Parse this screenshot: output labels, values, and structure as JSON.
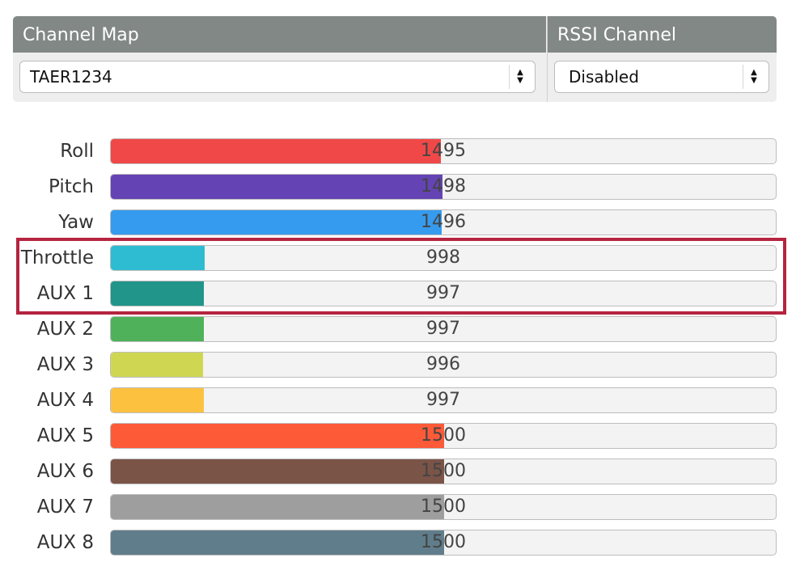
{
  "channel_map": {
    "header": "Channel Map",
    "selected": "TAER1234"
  },
  "rssi_channel": {
    "header": "RSSI Channel",
    "selected": "Disabled"
  },
  "channels": [
    {
      "label": "Roll",
      "value": "1495",
      "level": 0.495,
      "color": "#f04848"
    },
    {
      "label": "Pitch",
      "value": "1498",
      "level": 0.498,
      "color": "#6443b4"
    },
    {
      "label": "Yaw",
      "value": "1496",
      "level": 0.496,
      "color": "#359bee"
    },
    {
      "label": "Throttle",
      "value": "998",
      "level": 0.141,
      "color": "#2ebcd2"
    },
    {
      "label": "AUX 1",
      "value": "997",
      "level": 0.14,
      "color": "#21958a"
    },
    {
      "label": "AUX 2",
      "value": "997",
      "level": 0.14,
      "color": "#4fb15a"
    },
    {
      "label": "AUX 3",
      "value": "996",
      "level": 0.138,
      "color": "#cfd752"
    },
    {
      "label": "AUX 4",
      "value": "997",
      "level": 0.14,
      "color": "#fdc140"
    },
    {
      "label": "AUX 5",
      "value": "1500",
      "level": 0.5,
      "color": "#fd5a38"
    },
    {
      "label": "AUX 6",
      "value": "1500",
      "level": 0.5,
      "color": "#7b5448"
    },
    {
      "label": "AUX 7",
      "value": "1500",
      "level": 0.5,
      "color": "#9e9e9e"
    },
    {
      "label": "AUX 8",
      "value": "1500",
      "level": 0.5,
      "color": "#607d8b"
    }
  ],
  "highlight_color": "#b5243f"
}
